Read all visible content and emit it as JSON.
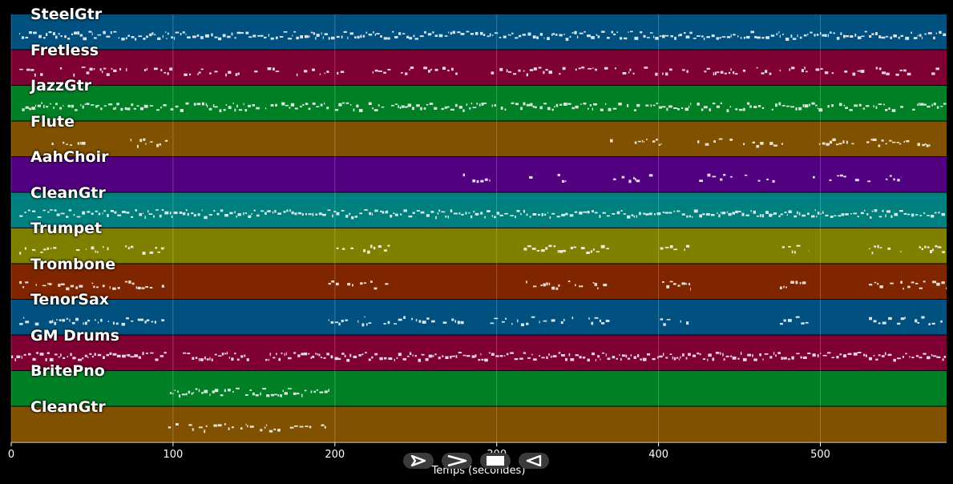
{
  "window": {
    "background": "#000000"
  },
  "xaxis": {
    "label": "Temps (secondes)",
    "range": [
      0,
      578
    ],
    "ticks": [
      {
        "value": 0,
        "label": "0"
      },
      {
        "value": 100,
        "label": "100"
      },
      {
        "value": 200,
        "label": "200"
      },
      {
        "value": 300,
        "label": "300"
      },
      {
        "value": 400,
        "label": "400"
      },
      {
        "value": 500,
        "label": "500"
      }
    ]
  },
  "tracks": [
    {
      "name": "SteelGtr",
      "color": "#00517f",
      "density": 1.0,
      "segments": [
        [
          5,
          578
        ]
      ]
    },
    {
      "name": "Fretless",
      "color": "#7f0033",
      "density": 0.55,
      "segments": [
        [
          5,
          578
        ]
      ]
    },
    {
      "name": "JazzGtr",
      "color": "#007f25",
      "density": 0.9,
      "segments": [
        [
          5,
          578
        ]
      ]
    },
    {
      "name": "Flute",
      "color": "#7f5100",
      "density": 0.6,
      "segments": [
        [
          25,
          48
        ],
        [
          70,
          97
        ],
        [
          370,
          402
        ],
        [
          424,
          477
        ],
        [
          497,
          568
        ]
      ]
    },
    {
      "name": "AahChoir",
      "color": "#51007f",
      "density": 0.5,
      "segments": [
        [
          278,
          296
        ],
        [
          320,
          343
        ],
        [
          372,
          399
        ],
        [
          420,
          473
        ],
        [
          493,
          550
        ]
      ]
    },
    {
      "name": "CleanGtr",
      "color": "#007f7f",
      "density": 1.0,
      "segments": [
        [
          5,
          578
        ]
      ]
    },
    {
      "name": "Trumpet",
      "color": "#7f7f00",
      "density": 0.65,
      "segments": [
        [
          5,
          95
        ],
        [
          198,
          234
        ],
        [
          315,
          370
        ],
        [
          401,
          420
        ],
        [
          475,
          493
        ],
        [
          530,
          578
        ]
      ]
    },
    {
      "name": "Trombone",
      "color": "#7f2500",
      "density": 0.65,
      "segments": [
        [
          5,
          95
        ],
        [
          196,
          234
        ],
        [
          315,
          370
        ],
        [
          401,
          420
        ],
        [
          475,
          493
        ],
        [
          530,
          578
        ]
      ]
    },
    {
      "name": "TenorSax",
      "color": "#00517f",
      "density": 0.65,
      "segments": [
        [
          5,
          95
        ],
        [
          196,
          280
        ],
        [
          296,
          370
        ],
        [
          401,
          420
        ],
        [
          475,
          493
        ],
        [
          530,
          578
        ]
      ]
    },
    {
      "name": "GM Drums",
      "color": "#7f0033",
      "density": 1.0,
      "segments": [
        [
          0,
          96
        ],
        [
          106,
          147
        ],
        [
          157,
          578
        ]
      ]
    },
    {
      "name": "BritePno",
      "color": "#007f25",
      "density": 0.9,
      "segments": [
        [
          98,
          197
        ]
      ]
    },
    {
      "name": "CleanGtr",
      "color": "#7f5100",
      "density": 0.7,
      "segments": [
        [
          97,
          195
        ]
      ]
    }
  ],
  "controls": [
    {
      "name": "play-button",
      "icon": "play-icon"
    },
    {
      "name": "forward-button",
      "icon": "forward-icon"
    },
    {
      "name": "stop-button",
      "icon": "stop-icon"
    },
    {
      "name": "rewind-button",
      "icon": "rewind-icon"
    }
  ]
}
